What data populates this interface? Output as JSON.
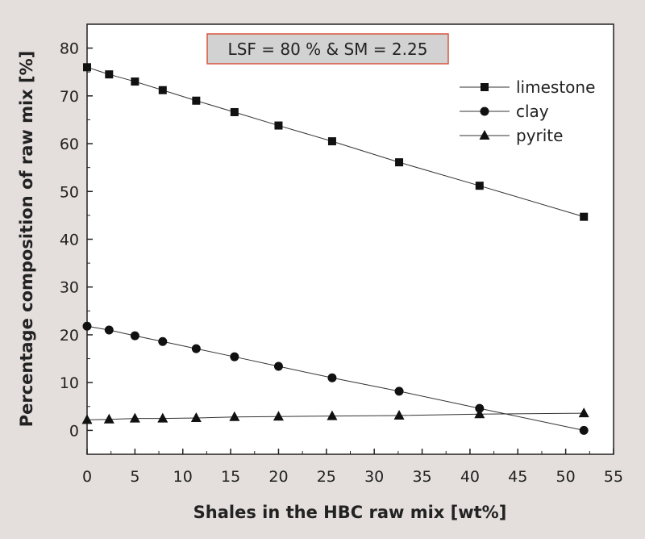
{
  "chart_data": {
    "type": "line",
    "xlabel": "Shales in the HBC raw mix [wt%]",
    "ylabel": "Percentage composition of raw mix [%]",
    "xlim": [
      0,
      55
    ],
    "ylim": [
      -5,
      85
    ],
    "x_ticks": [
      0,
      5,
      10,
      15,
      20,
      25,
      30,
      35,
      40,
      45,
      50,
      55
    ],
    "y_ticks": [
      0,
      10,
      20,
      30,
      40,
      50,
      60,
      70,
      80
    ],
    "annotation": "LSF = 80 % & SM = 2.25",
    "legend_position": "top-right",
    "x": [
      0,
      2.3,
      5,
      7.9,
      11.4,
      15.4,
      20,
      25.6,
      32.6,
      41,
      51.9
    ],
    "series": [
      {
        "name": "limestone",
        "marker": "square",
        "values": [
          76.0,
          74.5,
          73.0,
          71.2,
          69.0,
          66.6,
          63.8,
          60.5,
          56.1,
          51.2,
          44.7
        ]
      },
      {
        "name": "clay",
        "marker": "circle",
        "values": [
          21.8,
          21.0,
          19.8,
          18.6,
          17.1,
          15.4,
          13.4,
          11.0,
          8.2,
          4.6,
          0.0
        ]
      },
      {
        "name": "pyrite",
        "marker": "triangle",
        "values": [
          2.2,
          2.3,
          2.5,
          2.5,
          2.6,
          2.8,
          2.9,
          3.0,
          3.1,
          3.4,
          3.6
        ]
      }
    ]
  }
}
